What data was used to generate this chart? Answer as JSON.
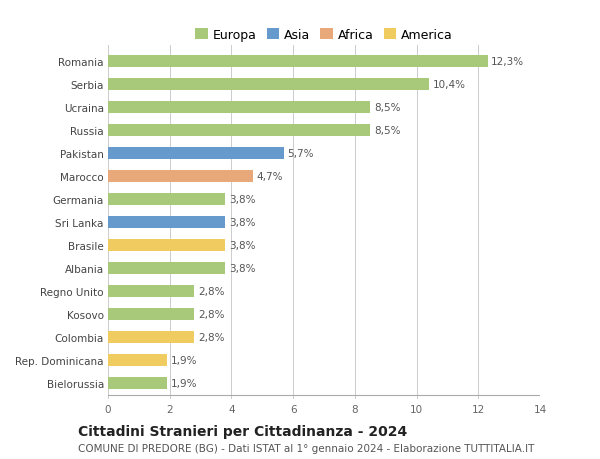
{
  "countries": [
    "Romania",
    "Serbia",
    "Ucraina",
    "Russia",
    "Pakistan",
    "Marocco",
    "Germania",
    "Sri Lanka",
    "Brasile",
    "Albania",
    "Regno Unito",
    "Kosovo",
    "Colombia",
    "Rep. Dominicana",
    "Bielorussia"
  ],
  "values": [
    12.3,
    10.4,
    8.5,
    8.5,
    5.7,
    4.7,
    3.8,
    3.8,
    3.8,
    3.8,
    2.8,
    2.8,
    2.8,
    1.9,
    1.9
  ],
  "labels": [
    "12,3%",
    "10,4%",
    "8,5%",
    "8,5%",
    "5,7%",
    "4,7%",
    "3,8%",
    "3,8%",
    "3,8%",
    "3,8%",
    "2,8%",
    "2,8%",
    "2,8%",
    "1,9%",
    "1,9%"
  ],
  "continents": [
    "Europa",
    "Europa",
    "Europa",
    "Europa",
    "Asia",
    "Africa",
    "Europa",
    "Asia",
    "America",
    "Europa",
    "Europa",
    "Europa",
    "America",
    "America",
    "Europa"
  ],
  "colors": {
    "Europa": "#a8c87a",
    "Asia": "#6699cc",
    "Africa": "#e8a87a",
    "America": "#f0cc60"
  },
  "xlim": [
    0,
    14
  ],
  "xticks": [
    0,
    2,
    4,
    6,
    8,
    10,
    12,
    14
  ],
  "title": "Cittadini Stranieri per Cittadinanza - 2024",
  "subtitle": "COMUNE DI PREDORE (BG) - Dati ISTAT al 1° gennaio 2024 - Elaborazione TUTTITALIA.IT",
  "bg_color": "#ffffff",
  "grid_color": "#cccccc",
  "bar_height": 0.55,
  "title_fontsize": 10,
  "subtitle_fontsize": 7.5,
  "label_fontsize": 7.5,
  "tick_fontsize": 7.5,
  "legend_fontsize": 9
}
